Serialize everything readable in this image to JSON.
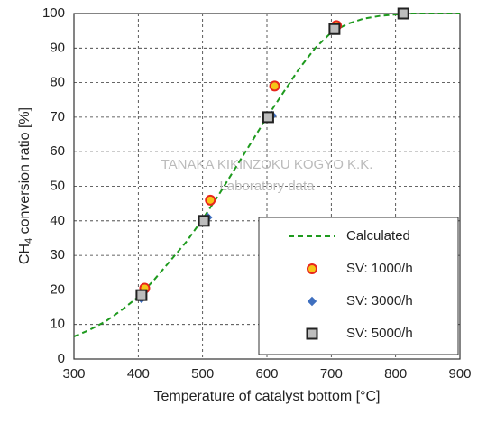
{
  "chart_data": {
    "type": "scatter",
    "xlabel": "Temperature of catalyst bottom [°C]",
    "ylabel": {
      "text": "CH",
      "subscript": "4",
      "rest": " conversion ratio [%]"
    },
    "annotations": [
      "TANAKA KIKINZOKU KOGYO K.K.",
      "Laboratory data"
    ],
    "xlim": [
      300,
      900
    ],
    "xticks": [
      300,
      400,
      500,
      600,
      700,
      800,
      900
    ],
    "ylim": [
      0,
      100
    ],
    "yticks": [
      0,
      10,
      20,
      30,
      40,
      50,
      60,
      70,
      80,
      90,
      100
    ],
    "grid": true,
    "legend": "lower right",
    "series": [
      {
        "name": "Calculated",
        "kind": "line",
        "style": "dashed",
        "color": "#1e9a1e",
        "x": [
          300,
          325,
          350,
          375,
          400,
          425,
          450,
          475,
          500,
          525,
          550,
          575,
          600,
          625,
          650,
          675,
          700,
          725,
          750,
          775,
          800,
          825,
          850,
          900
        ],
        "values": [
          6.5,
          8.5,
          11,
          14.3,
          18,
          23,
          28.5,
          34,
          40.5,
          47.5,
          55,
          62.5,
          70,
          77,
          84,
          90,
          94.5,
          97,
          98.5,
          99.3,
          99.7,
          100,
          100,
          100
        ]
      },
      {
        "name": "SV: 1000/h",
        "kind": "points",
        "marker": "circle",
        "color": "#e8261c",
        "fill": "#f5c518",
        "x": [
          410,
          512,
          612,
          708,
          812
        ],
        "values": [
          20.5,
          46,
          79,
          96.5,
          100
        ]
      },
      {
        "name": "SV: 3000/h",
        "kind": "points",
        "marker": "diamond",
        "color": "#3f6fbf",
        "fill": "#3f6fbf",
        "x": [
          405,
          508,
          608,
          705,
          812
        ],
        "values": [
          17.5,
          41,
          70.5,
          95.5,
          100
        ]
      },
      {
        "name": "SV: 5000/h",
        "kind": "points",
        "marker": "square",
        "color": "#222222",
        "fill": "#bdbdbd",
        "x": [
          405,
          502,
          602,
          705,
          812
        ],
        "values": [
          18.5,
          40,
          70,
          95.5,
          100
        ]
      }
    ]
  }
}
